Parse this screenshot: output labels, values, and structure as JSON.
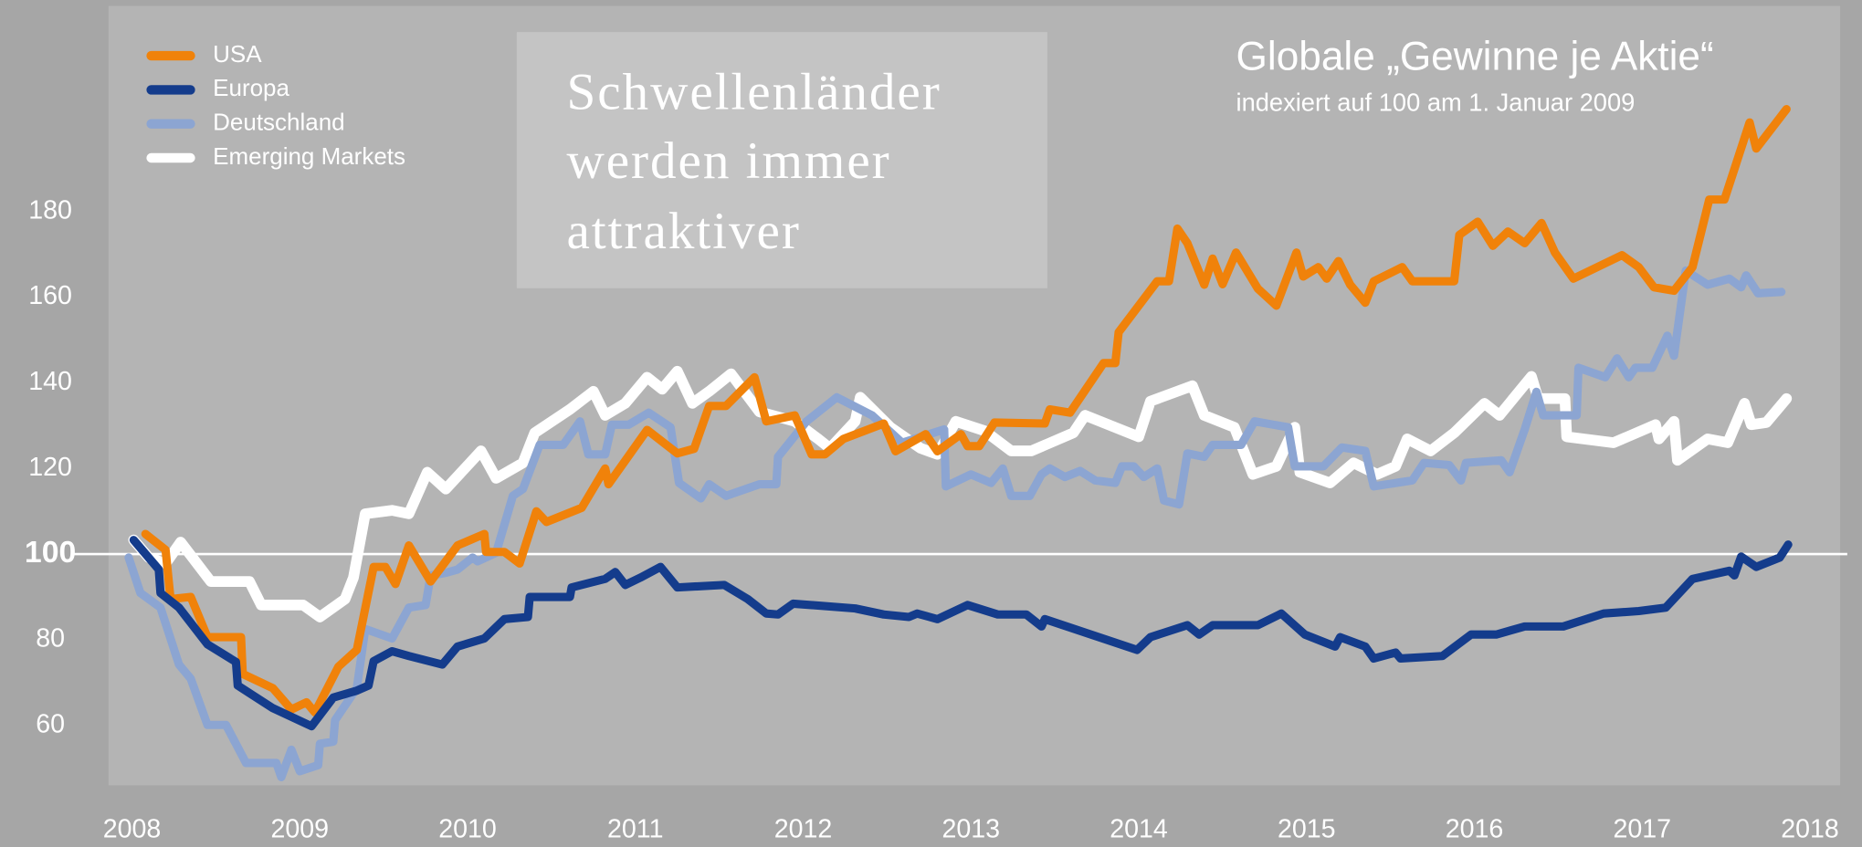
{
  "chart_data": {
    "type": "line",
    "title": "Globale „Gewinne je Aktie“",
    "subtitle": "indexiert auf 100 am 1. Januar 2009",
    "annotation": [
      "Schwellenländer",
      "werden immer",
      "attraktiver"
    ],
    "xlim": [
      2007.86,
      2018.18
    ],
    "xticks": [
      2008,
      2009,
      2010,
      2011,
      2012,
      2013,
      2014,
      2015,
      2016,
      2017,
      2018
    ],
    "ylim": [
      46,
      228
    ],
    "yticks": [
      60,
      80,
      100,
      120,
      140,
      160,
      180
    ],
    "reference_line": 100,
    "legend": "top-left",
    "series": [
      {
        "name": "USA",
        "color": "#f0820a",
        "x": [
          2008.08,
          2008.2,
          2008.23,
          2008.35,
          2008.45,
          2008.65,
          2008.66,
          2008.84,
          2008.95,
          2009.04,
          2009.09,
          2009.23,
          2009.34,
          2009.44,
          2009.51,
          2009.57,
          2009.65,
          2009.78,
          2009.94,
          2010.1,
          2010.11,
          2010.22,
          2010.31,
          2010.41,
          2010.47,
          2010.68,
          2010.82,
          2010.84,
          2011.07,
          2011.25,
          2011.35,
          2011.44,
          2011.54,
          2011.71,
          2011.78,
          2011.95,
          2012.05,
          2012.13,
          2012.24,
          2012.48,
          2012.55,
          2012.73,
          2012.8,
          2012.94,
          2012.98,
          2013.05,
          2013.14,
          2013.44,
          2013.47,
          2013.59,
          2013.79,
          2013.86,
          2013.88,
          2014.11,
          2014.18,
          2014.23,
          2014.29,
          2014.39,
          2014.44,
          2014.5,
          2014.58,
          2014.71,
          2014.82,
          2014.94,
          2014.98,
          2015.07,
          2015.12,
          2015.19,
          2015.26,
          2015.35,
          2015.4,
          2015.57,
          2015.63,
          2015.88,
          2015.91,
          2016.02,
          2016.11,
          2016.2,
          2016.3,
          2016.4,
          2016.48,
          2016.59,
          2016.88,
          2016.98,
          2017.07,
          2017.19,
          2017.3,
          2017.4,
          2017.49,
          2017.64,
          2017.68,
          2017.86
        ],
        "values": [
          104.7,
          101,
          89.5,
          90,
          80.6,
          80.6,
          72,
          68.7,
          63.7,
          65.4,
          63,
          73.7,
          77.6,
          97,
          97,
          93,
          102,
          93.6,
          102,
          104.7,
          100.5,
          100.5,
          97.8,
          110,
          107.5,
          110.8,
          120,
          116.3,
          129,
          123.5,
          124.6,
          134.6,
          134.6,
          141.3,
          131,
          132.4,
          123.3,
          123.3,
          126.9,
          130.5,
          124,
          128,
          124,
          128,
          125.2,
          125.2,
          130.7,
          130.5,
          133.8,
          133,
          144.6,
          144.6,
          151.8,
          163.7,
          163.7,
          176,
          172.6,
          162.9,
          169,
          163,
          170.4,
          162,
          158,
          170.4,
          164.8,
          167,
          164.3,
          168.4,
          162.9,
          158.7,
          163.7,
          167,
          163.7,
          163.7,
          174.5,
          177.6,
          172,
          175.3,
          172.6,
          177.3,
          170.4,
          164.3,
          169.8,
          167,
          162.3,
          161.5,
          167,
          182.8,
          182.8,
          200.8,
          194.7,
          203.9
        ]
      },
      {
        "name": "Europa",
        "color": "#143c8c",
        "x": [
          2008.01,
          2008.16,
          2008.17,
          2008.28,
          2008.45,
          2008.62,
          2008.63,
          2008.84,
          2009.07,
          2009.2,
          2009.34,
          2009.41,
          2009.44,
          2009.55,
          2009.65,
          2009.85,
          2009.94,
          2010.1,
          2010.22,
          2010.36,
          2010.37,
          2010.61,
          2010.62,
          2010.82,
          2010.88,
          2010.94,
          2011.03,
          2011.15,
          2011.25,
          2011.53,
          2011.67,
          2011.78,
          2011.85,
          2011.94,
          2012.31,
          2012.48,
          2012.63,
          2012.68,
          2012.8,
          2012.98,
          2013.16,
          2013.33,
          2013.42,
          2013.44,
          2013.99,
          2014.07,
          2014.29,
          2014.36,
          2014.44,
          2014.71,
          2014.85,
          2014.99,
          2015.17,
          2015.2,
          2015.35,
          2015.4,
          2015.53,
          2015.56,
          2015.81,
          2015.98,
          2016.13,
          2016.3,
          2016.53,
          2016.77,
          2016.98,
          2017.14,
          2017.3,
          2017.52,
          2017.55,
          2017.59,
          2017.68,
          2017.82,
          2017.87
        ],
        "values": [
          103.3,
          96.4,
          90.9,
          87.5,
          78.9,
          74.8,
          69.3,
          64,
          59.8,
          66.5,
          68.1,
          69.3,
          75,
          77.3,
          76.2,
          74.2,
          78.4,
          80.3,
          84.8,
          85.3,
          90,
          90,
          92.2,
          94.2,
          95.8,
          92.8,
          94.5,
          97,
          92.2,
          92.8,
          89.5,
          86.1,
          85.9,
          88.4,
          87.3,
          85.9,
          85.3,
          86.1,
          84.8,
          88.1,
          85.9,
          85.9,
          83.1,
          84.8,
          77.6,
          80.6,
          83.4,
          81.2,
          83.4,
          83.4,
          86.1,
          81.2,
          78.4,
          80.6,
          78.4,
          75.6,
          77,
          75.6,
          76.2,
          81.2,
          81.2,
          83.1,
          83.1,
          86.1,
          86.7,
          87.5,
          94.2,
          96.1,
          95,
          99.4,
          97,
          99.2,
          102.2
        ]
      },
      {
        "name": "Deutschland",
        "color": "#8ca5d2",
        "x": [
          2007.98,
          2008.05,
          2008.17,
          2008.28,
          2008.35,
          2008.45,
          2008.56,
          2008.68,
          2008.86,
          2008.89,
          2008.95,
          2009.0,
          2009.11,
          2009.12,
          2009.2,
          2009.21,
          2009.34,
          2009.39,
          2009.55,
          2009.65,
          2009.75,
          2009.78,
          2009.87,
          2009.94,
          2010.03,
          2010.06,
          2010.17,
          2010.27,
          2010.33,
          2010.43,
          2010.57,
          2010.67,
          2010.72,
          2010.82,
          2010.86,
          2010.96,
          2011.08,
          2011.21,
          2011.26,
          2011.39,
          2011.44,
          2011.54,
          2011.74,
          2011.84,
          2011.85,
          2012.02,
          2012.2,
          2012.41,
          2012.59,
          2012.84,
          2012.85,
          2013.0,
          2013.12,
          2013.19,
          2013.24,
          2013.35,
          2013.42,
          2013.47,
          2013.56,
          2013.65,
          2013.74,
          2013.86,
          2013.9,
          2013.97,
          2014.03,
          2014.11,
          2014.15,
          2014.24,
          2014.29,
          2014.39,
          2014.44,
          2014.61,
          2014.69,
          2014.89,
          2014.93,
          2015.1,
          2015.21,
          2015.35,
          2015.4,
          2015.63,
          2015.7,
          2015.85,
          2015.92,
          2015.95,
          2016.16,
          2016.21,
          2016.3,
          2016.37,
          2016.41,
          2016.61,
          2016.62,
          2016.78,
          2016.85,
          2016.92,
          2016.96,
          2017.06,
          2017.15,
          2017.19,
          2017.26,
          2017.39,
          2017.52,
          2017.59,
          2017.62,
          2017.69,
          2017.83
        ],
        "values": [
          99.2,
          90.9,
          87.5,
          74.2,
          70.9,
          60.1,
          60.1,
          51.2,
          51.2,
          47.9,
          54.3,
          49.3,
          50.7,
          55.7,
          56.2,
          61.2,
          68.7,
          82.5,
          80.3,
          87.5,
          88.1,
          95,
          95.6,
          96.4,
          99.2,
          98.3,
          100.3,
          113.6,
          115.2,
          125.5,
          125.5,
          131,
          123.3,
          123.3,
          130.2,
          130.2,
          133,
          129.6,
          116.6,
          113,
          116.3,
          113.6,
          116.3,
          116.3,
          122.7,
          131,
          136.6,
          132.4,
          126,
          129.1,
          115.8,
          118.6,
          116.6,
          120,
          113.6,
          113.6,
          118.6,
          120,
          118,
          119.4,
          117.2,
          116.6,
          120.5,
          120.5,
          118,
          120,
          112.5,
          111.6,
          123.5,
          122.7,
          125.5,
          125.5,
          131,
          129.6,
          120.5,
          120.5,
          124.9,
          124.1,
          115.8,
          117.2,
          121.3,
          120.8,
          117.2,
          121.3,
          121.9,
          119.1,
          129.1,
          137.9,
          132.4,
          132.4,
          143.5,
          141.3,
          145.7,
          141.3,
          143.5,
          143.5,
          151,
          146.3,
          166.2,
          162.9,
          164.3,
          162.3,
          165.1,
          160.9,
          161.2
        ]
      },
      {
        "name": "Emerging Markets",
        "color": "#ffffff",
        "x": [
          2008.01,
          2008.1,
          2008.2,
          2008.29,
          2008.47,
          2008.7,
          2008.77,
          2009.02,
          2009.12,
          2009.27,
          2009.32,
          2009.39,
          2009.55,
          2009.65,
          2009.76,
          2009.87,
          2010.08,
          2010.17,
          2010.33,
          2010.4,
          2010.61,
          2010.75,
          2010.82,
          2010.94,
          2011.07,
          2011.16,
          2011.25,
          2011.34,
          2011.44,
          2011.57,
          2011.74,
          2011.95,
          2012.09,
          2012.16,
          2012.31,
          2012.34,
          2012.52,
          2012.7,
          2012.8,
          2012.91,
          2013.08,
          2013.24,
          2013.36,
          2013.61,
          2013.68,
          2014.0,
          2014.07,
          2014.32,
          2014.39,
          2014.57,
          2014.68,
          2014.82,
          2014.93,
          2014.96,
          2015.14,
          2015.28,
          2015.42,
          2015.53,
          2015.6,
          2015.74,
          2015.88,
          2016.06,
          2016.15,
          2016.34,
          2016.38,
          2016.54,
          2016.55,
          2016.83,
          2017.08,
          2017.1,
          2017.19,
          2017.21,
          2017.39,
          2017.51,
          2017.61,
          2017.65,
          2017.74,
          2017.86
        ],
        "values": [
          103.3,
          99.2,
          97.8,
          102.8,
          93.6,
          93.6,
          88.1,
          88.1,
          85.3,
          89.5,
          94.5,
          109.4,
          110.2,
          109.4,
          119.1,
          115.2,
          124.1,
          117.7,
          121.3,
          128.3,
          133.8,
          138,
          132.4,
          135.2,
          141.3,
          138.5,
          142.7,
          135.2,
          138,
          142.1,
          133.2,
          131,
          126.9,
          124.7,
          131,
          136.6,
          129.6,
          124.7,
          123.3,
          131,
          128.8,
          124.1,
          124.1,
          128.3,
          132.4,
          127.4,
          135.7,
          139.3,
          132.4,
          129.6,
          118.6,
          120.5,
          129.6,
          119.1,
          116.6,
          121.3,
          118.6,
          120.5,
          126.9,
          124.1,
          128.3,
          135.2,
          132.4,
          141.5,
          136.3,
          136.3,
          127.4,
          126,
          130.2,
          126.9,
          131,
          121.9,
          126.9,
          126,
          135.2,
          130.2,
          130.7,
          136.3
        ]
      }
    ]
  }
}
